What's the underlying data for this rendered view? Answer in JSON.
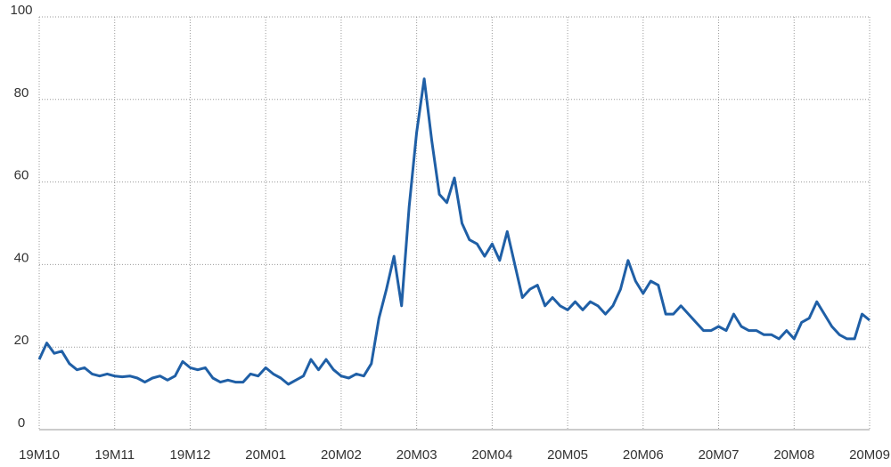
{
  "chart_data": {
    "type": "line",
    "categories": [
      "19M10",
      null,
      null,
      null,
      null,
      null,
      null,
      null,
      null,
      null,
      "19M11",
      null,
      null,
      null,
      null,
      null,
      null,
      null,
      null,
      null,
      "19M12",
      null,
      null,
      null,
      null,
      null,
      null,
      null,
      null,
      null,
      "20M01",
      null,
      null,
      null,
      null,
      null,
      null,
      null,
      null,
      null,
      "20M02",
      null,
      null,
      null,
      null,
      null,
      null,
      null,
      null,
      null,
      "20M03",
      null,
      null,
      null,
      null,
      null,
      null,
      null,
      null,
      null,
      "20M04",
      null,
      null,
      null,
      null,
      null,
      null,
      null,
      null,
      null,
      "20M05",
      null,
      null,
      null,
      null,
      null,
      null,
      null,
      null,
      null,
      "20M06",
      null,
      null,
      null,
      null,
      null,
      null,
      null,
      null,
      null,
      "20M07",
      null,
      null,
      null,
      null,
      null,
      null,
      null,
      null,
      null,
      "20M08",
      null,
      null,
      null,
      null,
      null,
      null,
      null,
      null,
      null,
      "20M09"
    ],
    "series": [
      {
        "color": "#1f5fa6",
        "values": [
          17,
          21,
          18.5,
          19,
          16,
          14.5,
          15,
          13.5,
          13,
          13.5,
          13,
          12.8,
          13,
          12.5,
          11.5,
          12.5,
          13,
          12,
          13,
          16.5,
          15,
          14.5,
          15,
          12.5,
          11.5,
          12,
          11.5,
          11.5,
          13.5,
          13,
          15,
          13.5,
          12.5,
          11,
          12,
          13,
          17,
          14.5,
          17,
          14.5,
          13,
          12.5,
          13.5,
          13,
          16,
          27,
          34,
          42,
          30,
          54,
          72,
          85,
          70,
          57,
          55,
          61,
          50,
          46,
          45,
          42,
          45,
          41,
          48,
          40,
          32,
          34,
          35,
          30,
          32,
          30,
          29,
          31,
          29,
          31,
          30,
          28,
          30,
          34,
          41,
          36,
          33,
          36,
          35,
          28,
          28,
          30,
          28,
          26,
          24,
          24,
          25,
          24,
          28,
          25,
          24,
          24,
          23,
          23,
          22,
          24,
          22,
          26,
          27,
          31,
          28,
          25,
          23,
          22,
          22,
          28,
          26.5
        ]
      }
    ],
    "ylim": [
      0,
      100
    ],
    "yticks": [
      0,
      20,
      40,
      60,
      80,
      100
    ],
    "grid": true
  }
}
